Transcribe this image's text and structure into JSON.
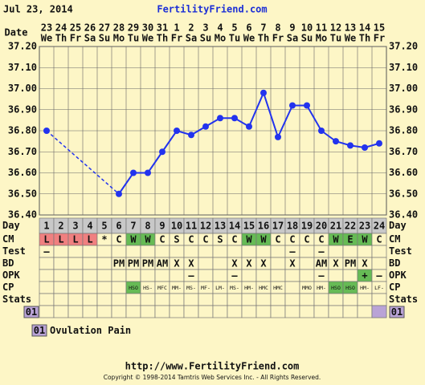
{
  "header": {
    "print_date": "Jul 23, 2014",
    "site": "FertilityFriend.com"
  },
  "chart_data": {
    "type": "line",
    "date_label": "Date",
    "categories": [
      "23",
      "24",
      "25",
      "26",
      "27",
      "28",
      "29",
      "30",
      "31",
      "1",
      "2",
      "3",
      "4",
      "5",
      "6",
      "7",
      "8",
      "9",
      "10",
      "11",
      "12",
      "13",
      "14",
      "15"
    ],
    "weekdays": [
      "We",
      "Th",
      "Fr",
      "Sa",
      "Su",
      "Mo",
      "Tu",
      "We",
      "Th",
      "Fr",
      "Sa",
      "Su",
      "Mo",
      "Tu",
      "We",
      "Th",
      "Fr",
      "Sa",
      "Su",
      "Mo",
      "Tu",
      "We",
      "Th",
      "Fr"
    ],
    "values": [
      36.8,
      null,
      null,
      null,
      null,
      36.5,
      36.6,
      36.6,
      36.7,
      36.8,
      36.78,
      36.82,
      36.86,
      36.86,
      36.82,
      36.98,
      36.77,
      36.92,
      36.92,
      36.8,
      36.75,
      36.73,
      36.72,
      36.74
    ],
    "color": "#2233ee",
    "ylim": [
      36.4,
      37.2
    ],
    "yticks": [
      {
        "value": 36.4,
        "label": "36.40"
      },
      {
        "value": 36.5,
        "label": "36.50"
      },
      {
        "value": 36.6,
        "label": "36.60"
      },
      {
        "value": 36.7,
        "label": "36.70"
      },
      {
        "value": 36.8,
        "label": "36.80"
      },
      {
        "value": 36.9,
        "label": "36.90"
      },
      {
        "value": 37.0,
        "label": "37.00"
      },
      {
        "value": 37.1,
        "label": "37.10"
      },
      {
        "value": 37.2,
        "label": "37.20"
      }
    ],
    "grid": true
  },
  "cycle_table": {
    "rows": [
      {
        "label": "Day",
        "cells": [
          1,
          2,
          3,
          4,
          5,
          6,
          7,
          8,
          9,
          10,
          11,
          12,
          13,
          14,
          15,
          16,
          17,
          18,
          19,
          20,
          21,
          22,
          23,
          24
        ]
      },
      {
        "label": "CM",
        "cells": [
          "L",
          "L",
          "L",
          "L",
          "*",
          "C",
          "W",
          "W",
          "C",
          "S",
          "C",
          "C",
          "S",
          "C",
          "W",
          "W",
          "C",
          "C",
          "C",
          "C",
          "W",
          "E",
          "W",
          "C"
        ],
        "colors": [
          "#f08080",
          "#f08080",
          "#f08080",
          "#f08080",
          null,
          null,
          "#66bb55",
          "#66bb55",
          null,
          null,
          null,
          null,
          null,
          null,
          "#66bb55",
          "#66bb55",
          null,
          null,
          null,
          null,
          "#66bb55",
          "#66bb55",
          "#66bb55",
          null
        ]
      },
      {
        "label": "Test",
        "cells": [
          "–",
          null,
          null,
          null,
          null,
          null,
          null,
          null,
          null,
          null,
          null,
          null,
          null,
          null,
          null,
          null,
          null,
          "–",
          null,
          "–",
          null,
          null,
          null,
          null
        ]
      },
      {
        "label": "BD",
        "cells": [
          null,
          null,
          null,
          null,
          null,
          "PM",
          "PM",
          "PM",
          "AM",
          "X",
          "X",
          null,
          null,
          "X",
          "X",
          "X",
          null,
          "X",
          null,
          "AM",
          "X",
          "PM",
          "X",
          null
        ]
      },
      {
        "label": "OPK",
        "cells": [
          null,
          null,
          null,
          null,
          null,
          null,
          null,
          null,
          null,
          null,
          "–",
          null,
          null,
          "–",
          null,
          null,
          null,
          null,
          null,
          "–",
          null,
          null,
          "+",
          "–"
        ],
        "colors": [
          null,
          null,
          null,
          null,
          null,
          null,
          null,
          null,
          null,
          null,
          null,
          null,
          null,
          null,
          null,
          null,
          null,
          null,
          null,
          null,
          null,
          null,
          "#66bb55",
          null
        ]
      },
      {
        "label": "CP",
        "cells": [
          null,
          null,
          null,
          null,
          null,
          null,
          "HSO",
          "HS-",
          "MFC",
          "MM-",
          "MS-",
          "MF-",
          "LM-",
          "MS-",
          "HM-",
          "HMC",
          "HMC",
          null,
          "MMO",
          "HM-",
          "HSO",
          "HSO",
          "HM-",
          "LF-"
        ],
        "colors": [
          null,
          null,
          null,
          null,
          null,
          null,
          "#66bb55",
          null,
          null,
          null,
          null,
          null,
          null,
          null,
          null,
          null,
          null,
          null,
          null,
          null,
          "#66bb55",
          "#66bb55",
          null,
          null
        ]
      },
      {
        "label": "Stats",
        "cells": [
          null,
          null,
          null,
          null,
          null,
          null,
          null,
          null,
          null,
          null,
          null,
          null,
          null,
          null,
          null,
          null,
          null,
          null,
          null,
          null,
          null,
          null,
          null,
          null
        ]
      }
    ]
  },
  "ovulation_pain": {
    "code": "01",
    "label": "Ovulation Pain",
    "days": [
      24
    ],
    "color": "#b9a3d6"
  },
  "footer": {
    "url": "http://www.FertilityFriend.com",
    "copyright": "Copyright © 1998-2014 Tamtris Web Services Inc. - All Rights Reserved."
  }
}
